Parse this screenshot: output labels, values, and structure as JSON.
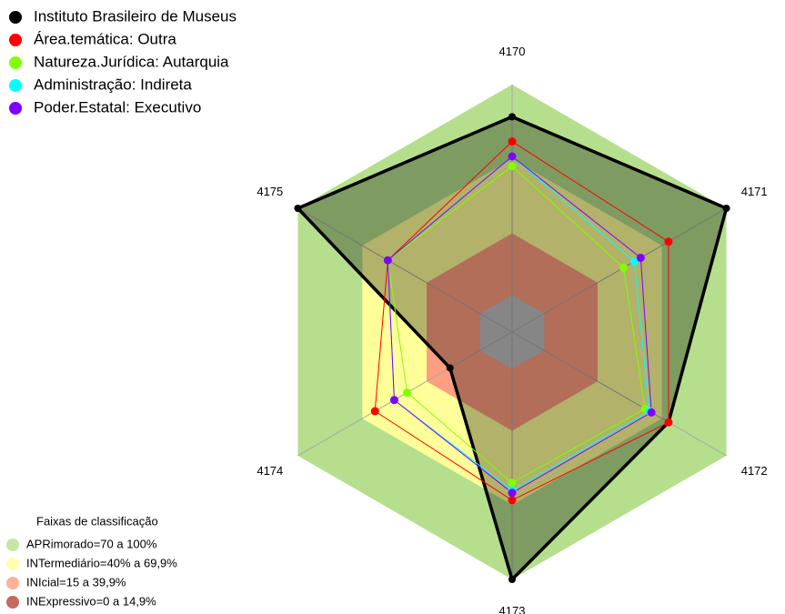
{
  "chart_data": {
    "type": "radar",
    "categories": [
      "4170",
      "4171",
      "4172",
      "4173",
      "4174",
      "4175"
    ],
    "ylim": [
      0,
      100
    ],
    "series": [
      {
        "name": "Instituto Brasileiro de Museus",
        "color": "#000000",
        "fill": "rgba(0,0,0,0.3)",
        "values": [
          87,
          100,
          73,
          100,
          29,
          100
        ]
      },
      {
        "name": "Área.temática: Outra",
        "color": "#ff0000",
        "values": [
          77,
          73,
          73,
          68,
          64,
          58
        ]
      },
      {
        "name": "Natureza.Jurídica: Autarquia",
        "color": "#80ff00",
        "values": [
          67,
          52,
          62,
          61,
          49,
          58
        ]
      },
      {
        "name": "Administração: Indireta",
        "color": "#00ffff",
        "values": [
          71,
          57,
          64,
          64,
          55,
          58
        ]
      },
      {
        "name": "Poder.Estatal: Executivo",
        "color": "#8000ff",
        "values": [
          71,
          60,
          65,
          65,
          55,
          58
        ]
      }
    ],
    "bands_title": "Faixas de classificação",
    "bands": [
      {
        "label": "APRimorado=70 a 100%",
        "color": "#b5df8c",
        "limits": [
          70,
          100
        ]
      },
      {
        "label": "INTermediário=40% a 69,9%",
        "color": "#ffff99",
        "limits": [
          40,
          69.9
        ]
      },
      {
        "label": "INIcial=15 a 39,9%",
        "color": "#ff9e80",
        "limits": [
          15,
          39.9
        ]
      },
      {
        "label": "INExpressivo=0 a 14,9%",
        "color": "#b5453a",
        "limits": [
          0,
          14.9
        ]
      }
    ]
  }
}
